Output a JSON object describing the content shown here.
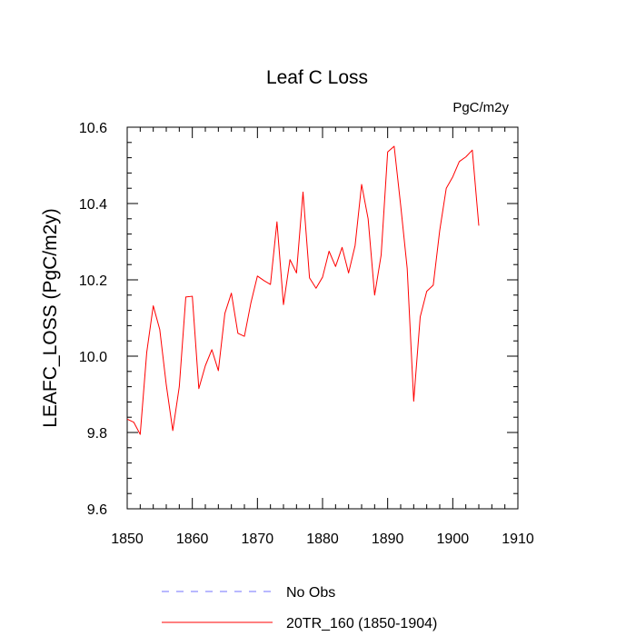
{
  "chart_data": {
    "type": "line",
    "title": "Leaf C Loss",
    "units_label": "PgC/m2y",
    "xlabel": "",
    "ylabel": "LEAFC_LOSS  (PgC/m2y)",
    "xlim": [
      1850,
      1910
    ],
    "ylim": [
      9.6,
      10.6
    ],
    "x_ticks": [
      1850,
      1860,
      1870,
      1880,
      1890,
      1900,
      1910
    ],
    "x_tick_labels": [
      "1850",
      "1860",
      "1870",
      "1880",
      "1890",
      "1900",
      "1910"
    ],
    "y_ticks": [
      9.6,
      9.8,
      10.0,
      10.2,
      10.4,
      10.6
    ],
    "y_tick_labels": [
      "9.6",
      "9.8",
      "10.0",
      "10.2",
      "10.4",
      "10.6"
    ],
    "series": [
      {
        "name": "20TR_160 (1850-1904)",
        "color": "#ff0000",
        "x": [
          1850,
          1851,
          1852,
          1853,
          1854,
          1855,
          1856,
          1857,
          1858,
          1859,
          1860,
          1861,
          1862,
          1863,
          1864,
          1865,
          1866,
          1867,
          1868,
          1869,
          1870,
          1871,
          1872,
          1873,
          1874,
          1875,
          1876,
          1877,
          1878,
          1879,
          1880,
          1881,
          1882,
          1883,
          1884,
          1885,
          1886,
          1887,
          1888,
          1889,
          1890,
          1891,
          1892,
          1893,
          1894,
          1895,
          1896,
          1897,
          1898,
          1899,
          1900,
          1901,
          1902,
          1903,
          1904
        ],
        "values": [
          9.835,
          9.827,
          9.795,
          10.01,
          10.132,
          10.07,
          9.925,
          9.805,
          9.92,
          10.155,
          10.157,
          9.915,
          9.975,
          10.017,
          9.962,
          10.112,
          10.165,
          10.06,
          10.052,
          10.14,
          10.21,
          10.198,
          10.188,
          10.352,
          10.135,
          10.253,
          10.218,
          10.43,
          10.205,
          10.178,
          10.207,
          10.275,
          10.235,
          10.285,
          10.218,
          10.29,
          10.45,
          10.36,
          10.16,
          10.265,
          10.535,
          10.55,
          10.395,
          10.23,
          9.882,
          10.103,
          10.17,
          10.186,
          10.33,
          10.44,
          10.47,
          10.51,
          10.522,
          10.54,
          10.342
        ]
      }
    ],
    "legend": {
      "placement": "bottom",
      "entries": [
        {
          "label": "No Obs",
          "color": "#0000ff",
          "style": "dashed"
        },
        {
          "label": "20TR_160 (1850-1904)",
          "color": "#ff0000",
          "style": "solid"
        }
      ]
    }
  }
}
